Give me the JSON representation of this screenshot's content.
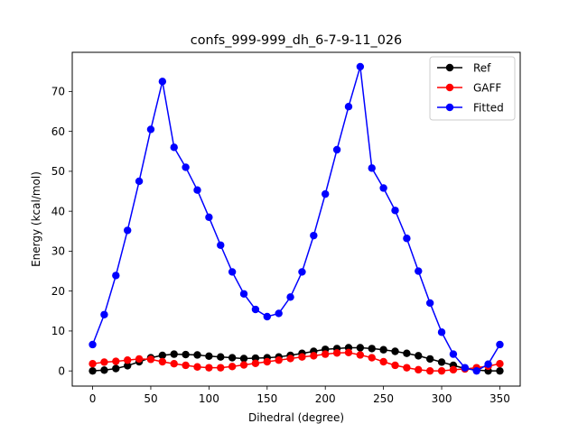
{
  "chart_data": {
    "type": "line",
    "title": "confs_999-999_dh_6-7-9-11_026",
    "xlabel": "Dihedral (degree)",
    "ylabel": "Energy (kcal/mol)",
    "xlim": [
      -17.5,
      367.5
    ],
    "ylim": [
      -3.8,
      79.8
    ],
    "xticks": [
      0,
      50,
      100,
      150,
      200,
      250,
      300,
      350
    ],
    "yticks": [
      0,
      10,
      20,
      30,
      40,
      50,
      60,
      70
    ],
    "grid": false,
    "legend_position": "top-right",
    "x": [
      0,
      10,
      20,
      30,
      40,
      50,
      60,
      70,
      80,
      90,
      100,
      110,
      120,
      130,
      140,
      150,
      160,
      170,
      180,
      190,
      200,
      210,
      220,
      230,
      240,
      250,
      260,
      270,
      280,
      290,
      300,
      310,
      320,
      330,
      340,
      350
    ],
    "series": [
      {
        "name": "Ref",
        "color": "#000000",
        "values": [
          0.0,
          0.2,
          0.6,
          1.3,
          2.3,
          3.3,
          3.9,
          4.2,
          4.1,
          4.0,
          3.7,
          3.5,
          3.3,
          3.1,
          3.2,
          3.3,
          3.5,
          3.9,
          4.4,
          4.9,
          5.4,
          5.6,
          5.8,
          5.8,
          5.6,
          5.3,
          4.9,
          4.4,
          3.8,
          3.0,
          2.2,
          1.4,
          0.6,
          0.2,
          0.0,
          0.0
        ]
      },
      {
        "name": "GAFF",
        "color": "#ff0000",
        "values": [
          1.8,
          2.2,
          2.4,
          2.7,
          3.0,
          2.9,
          2.3,
          1.8,
          1.4,
          1.0,
          0.8,
          0.8,
          1.1,
          1.5,
          1.9,
          2.3,
          2.7,
          3.1,
          3.5,
          3.8,
          4.2,
          4.5,
          4.6,
          4.0,
          3.3,
          2.3,
          1.4,
          0.8,
          0.3,
          0.0,
          0.0,
          0.3,
          0.5,
          0.8,
          1.2,
          1.8
        ]
      },
      {
        "name": "Fitted",
        "color": "#0000ff",
        "values": [
          6.6,
          14.1,
          23.9,
          35.2,
          47.5,
          60.5,
          72.5,
          56.0,
          51.0,
          45.3,
          38.5,
          31.5,
          24.8,
          19.3,
          15.4,
          13.6,
          14.4,
          18.5,
          24.8,
          33.9,
          44.3,
          55.4,
          66.2,
          76.2,
          50.8,
          45.8,
          40.2,
          33.2,
          25.0,
          17.0,
          9.7,
          4.2,
          0.8,
          0.0,
          1.7,
          6.6
        ]
      }
    ]
  }
}
